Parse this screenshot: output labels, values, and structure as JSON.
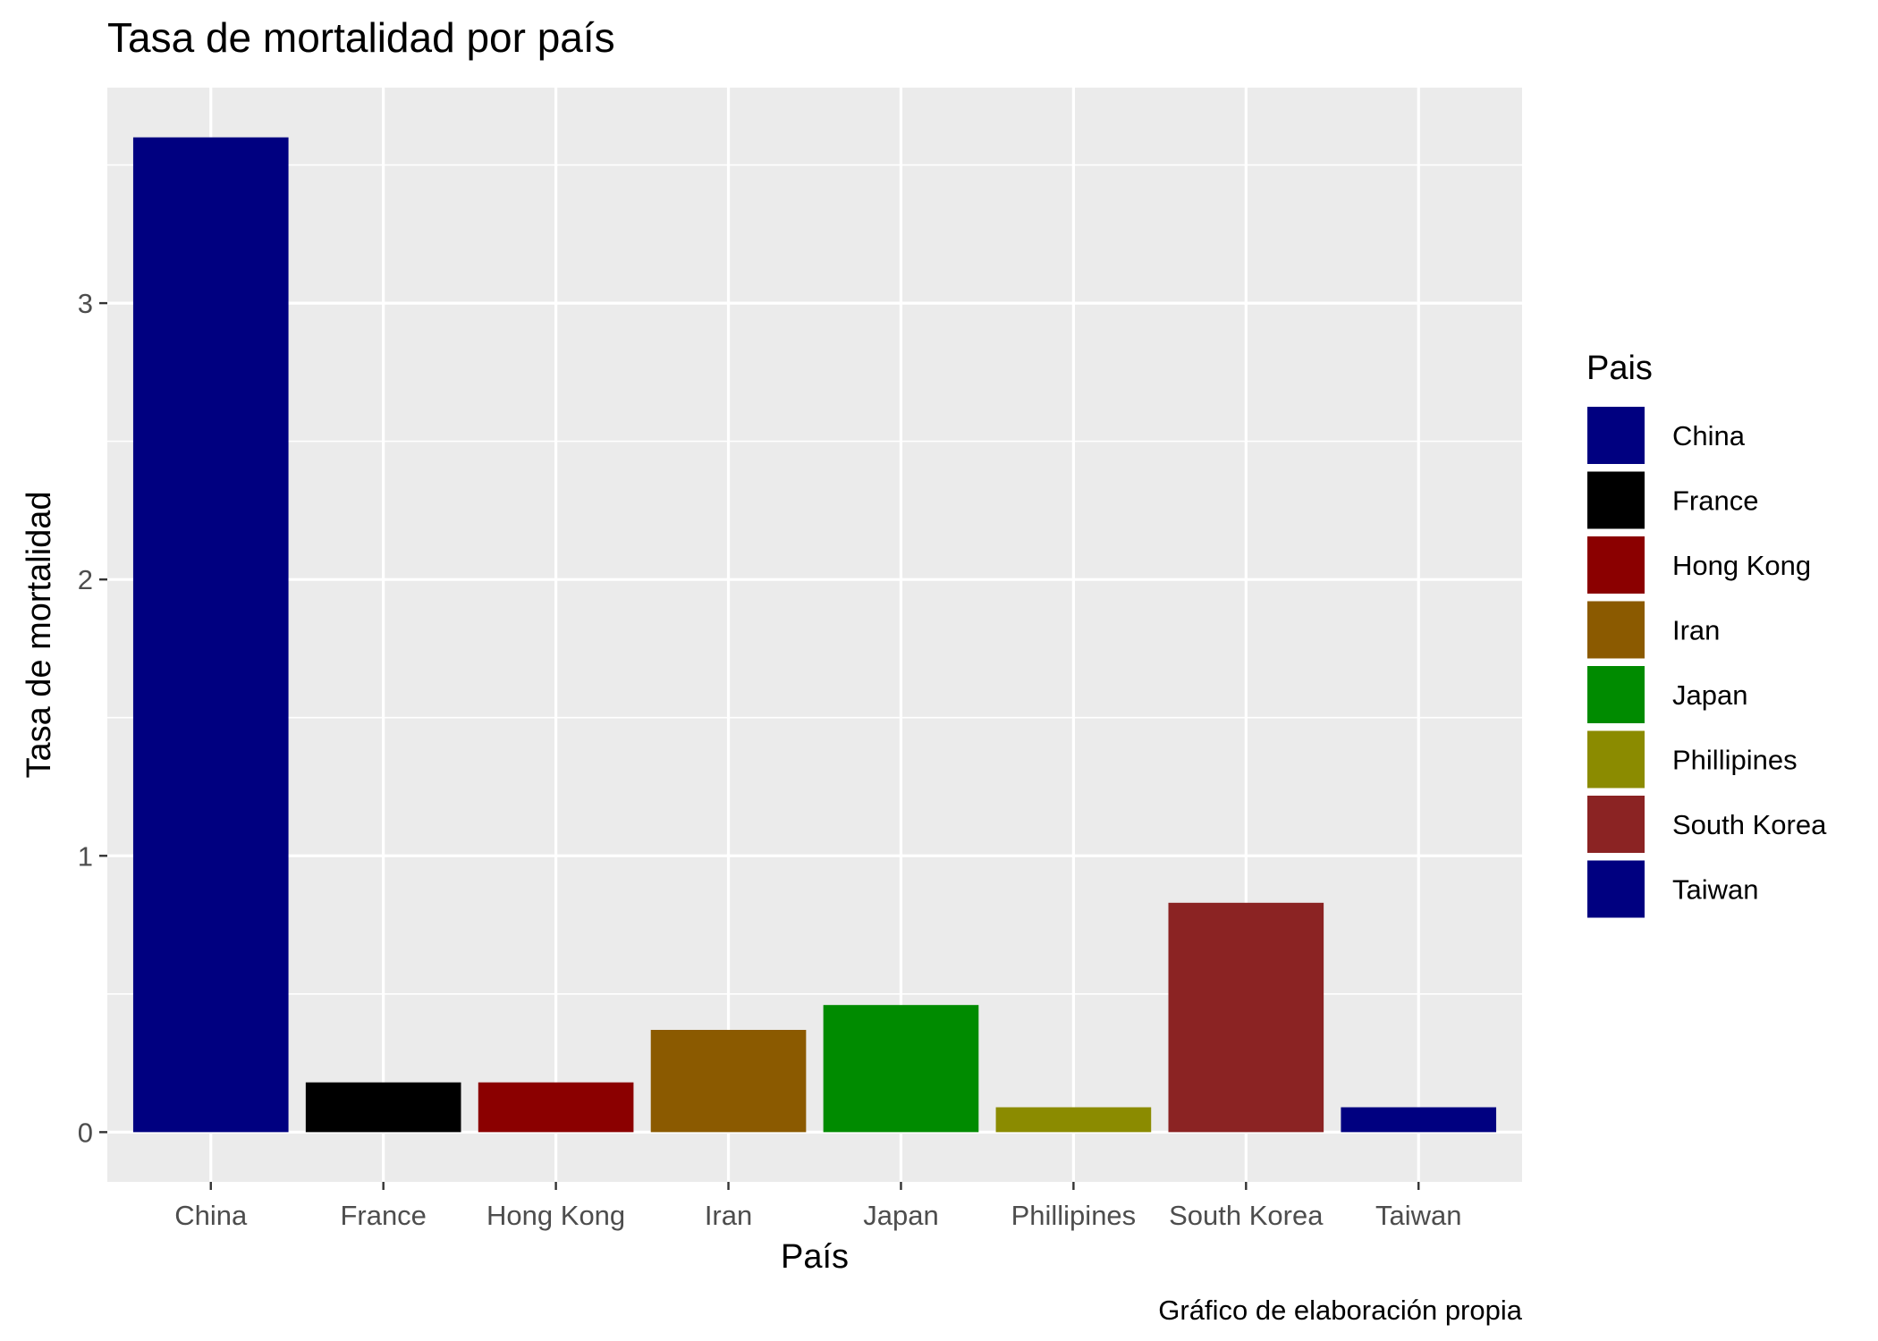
{
  "chart_data": {
    "type": "bar",
    "title": "Tasa de mortalidad por país",
    "xlabel": "País",
    "ylabel": "Tasa de mortalidad",
    "caption": "Gráfico de elaboración propia",
    "categories": [
      "China",
      "France",
      "Hong Kong",
      "Iran",
      "Japan",
      "Phillipines",
      "South Korea",
      "Taiwan"
    ],
    "values": [
      3.6,
      0.18,
      0.18,
      0.37,
      0.46,
      0.09,
      0.83,
      0.09
    ],
    "colors": [
      "#000080",
      "#000000",
      "#8B0000",
      "#8B5A00",
      "#008B00",
      "#8B8B00",
      "#8B2323",
      "#000080"
    ],
    "ylim": [
      -0.18,
      3.78
    ],
    "yticks": [
      0,
      1,
      2,
      3
    ],
    "grid": true,
    "panel_background": "#EBEBEB",
    "legend": {
      "title": "Pais",
      "position": "right",
      "entries": [
        "China",
        "France",
        "Hong Kong",
        "Iran",
        "Japan",
        "Phillipines",
        "South Korea",
        "Taiwan"
      ]
    }
  }
}
